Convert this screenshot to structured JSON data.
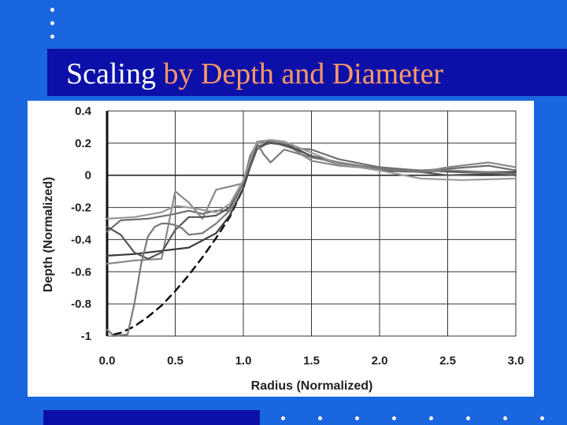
{
  "slide": {
    "title_part1": "Scaling",
    "title_part2": "by Depth and Diameter",
    "colors": {
      "background": "#1a66e0",
      "title_bar": "#0d10a8",
      "title_white": "#ffffff",
      "title_accent": "#ff9966"
    }
  },
  "chart_data": {
    "type": "line",
    "title": "",
    "xlabel": "Radius (Normalized)",
    "ylabel": "Depth (Normalized)",
    "xlim": [
      0,
      3
    ],
    "ylim": [
      -1,
      0.4
    ],
    "xticks": [
      "0.0",
      "0.5",
      "1.0",
      "1.5",
      "2.0",
      "2.5",
      "3.0"
    ],
    "yticks": [
      "0.4",
      "0.2",
      "0",
      "-0.2",
      "-0.4",
      "-0.6",
      "-0.8",
      "-1"
    ],
    "grid": true,
    "series": [
      {
        "style": "dashed",
        "color": "#111111",
        "x": [
          0.05,
          0.1,
          0.2,
          0.3,
          0.4,
          0.5,
          0.6,
          0.7,
          0.8,
          0.9,
          1.0
        ],
        "y": [
          -0.99,
          -0.98,
          -0.94,
          -0.88,
          -0.81,
          -0.72,
          -0.62,
          -0.51,
          -0.39,
          -0.26,
          -0.08
        ]
      },
      {
        "style": "solid",
        "color": "#3a3a3a",
        "x": [
          0.0,
          0.2,
          0.4,
          0.6,
          0.8,
          0.9,
          1.0,
          1.05,
          1.1,
          1.2,
          1.3,
          1.5,
          1.7,
          2.0,
          2.3,
          2.6,
          3.0
        ],
        "y": [
          -0.5,
          -0.49,
          -0.47,
          -0.45,
          -0.36,
          -0.25,
          -0.08,
          0.05,
          0.16,
          0.22,
          0.2,
          0.12,
          0.08,
          0.04,
          0.03,
          0.02,
          0.02
        ]
      },
      {
        "style": "solid",
        "color": "#6e6e6e",
        "x": [
          0.0,
          0.1,
          0.3,
          0.5,
          0.6,
          0.7,
          0.8,
          0.9,
          1.0,
          1.1,
          1.2,
          1.35,
          1.5,
          1.7,
          2.0,
          2.3,
          2.5,
          2.8,
          3.0
        ],
        "y": [
          -0.35,
          -0.28,
          -0.27,
          -0.24,
          -0.22,
          -0.24,
          -0.22,
          -0.22,
          -0.05,
          0.16,
          0.21,
          0.17,
          0.16,
          0.1,
          0.05,
          0.03,
          0.04,
          0.06,
          0.03
        ]
      },
      {
        "style": "solid",
        "color": "#8a8a8a",
        "x": [
          0.0,
          0.2,
          0.4,
          0.5,
          0.6,
          0.7,
          0.8,
          0.9,
          1.0,
          1.1,
          1.2,
          1.3,
          1.5,
          1.7,
          2.0,
          2.3,
          2.5,
          2.8,
          3.0
        ],
        "y": [
          -0.55,
          -0.53,
          -0.52,
          -0.1,
          -0.17,
          -0.27,
          -0.09,
          -0.07,
          -0.05,
          0.2,
          0.22,
          0.2,
          0.09,
          0.06,
          0.04,
          0.02,
          0.05,
          0.08,
          0.05
        ]
      },
      {
        "style": "solid",
        "color": "#555555",
        "x": [
          0.0,
          0.1,
          0.2,
          0.3,
          0.4,
          0.5,
          0.6,
          0.7,
          0.8,
          0.9,
          1.0,
          1.1,
          1.2,
          1.3,
          1.5,
          1.7,
          2.0,
          2.3,
          2.5,
          2.8,
          3.0
        ],
        "y": [
          -0.32,
          -0.37,
          -0.48,
          -0.52,
          -0.48,
          -0.34,
          -0.26,
          -0.26,
          -0.25,
          -0.2,
          -0.05,
          0.18,
          0.2,
          0.19,
          0.12,
          0.07,
          0.03,
          0.02,
          0.0,
          0.01,
          0.0
        ]
      },
      {
        "style": "solid",
        "color": "#7a7a7a",
        "x": [
          0.0,
          0.05,
          0.15,
          0.2,
          0.25,
          0.3,
          0.35,
          0.4,
          0.45,
          0.5,
          0.55,
          0.6,
          0.7,
          0.8,
          0.9,
          1.0,
          1.05,
          1.1,
          1.15,
          1.2,
          1.3,
          1.5,
          1.7,
          2.0,
          2.3,
          2.5,
          2.8,
          3.0
        ],
        "y": [
          -0.96,
          -1.0,
          -0.99,
          -0.8,
          -0.55,
          -0.38,
          -0.32,
          -0.3,
          -0.3,
          -0.31,
          -0.33,
          -0.37,
          -0.36,
          -0.3,
          -0.22,
          -0.04,
          0.12,
          0.2,
          0.13,
          0.08,
          0.16,
          0.11,
          0.08,
          0.04,
          0.02,
          0.03,
          0.02,
          0.01
        ]
      },
      {
        "style": "solid",
        "color": "#999999",
        "x": [
          0.0,
          0.2,
          0.4,
          0.5,
          0.6,
          0.8,
          0.9,
          1.0,
          1.1,
          1.2,
          1.3,
          1.5,
          1.7,
          2.0,
          2.3,
          2.6,
          3.0
        ],
        "y": [
          -0.27,
          -0.26,
          -0.23,
          -0.19,
          -0.2,
          -0.23,
          -0.18,
          -0.03,
          0.21,
          0.22,
          0.21,
          0.14,
          0.07,
          0.03,
          -0.02,
          -0.03,
          -0.02
        ]
      }
    ]
  }
}
